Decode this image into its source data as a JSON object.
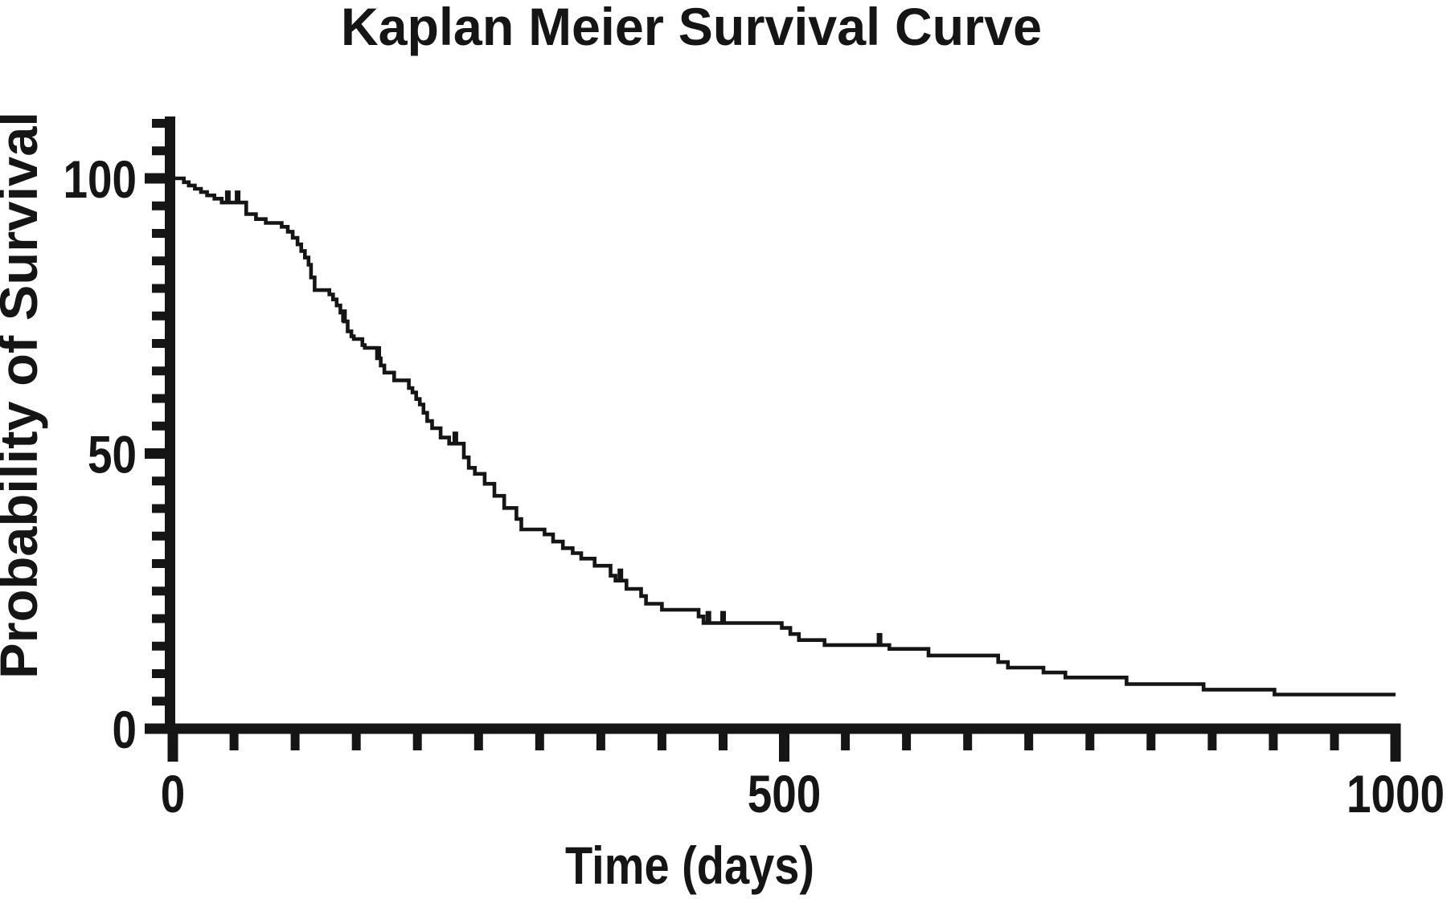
{
  "figure": {
    "background_color": "#ffffff",
    "ink_color": "#151515"
  },
  "chart": {
    "x_axis": {
      "label": "Time (days)",
      "min": 0,
      "max": 1000,
      "minor_tick_interval": 50,
      "tick_labels": [
        {
          "value": 0,
          "label": "0"
        },
        {
          "value": 500,
          "label": "500"
        },
        {
          "value": 1000,
          "label": "1000"
        }
      ]
    },
    "y_axis": {
      "label": "Probability of Survival",
      "min": 0,
      "max": 100,
      "minor_tick_interval": 5,
      "minor_tick_max": 110,
      "tick_labels": [
        {
          "value": 0,
          "label": "0"
        },
        {
          "value": 50,
          "label": "50"
        },
        {
          "value": 100,
          "label": "100"
        }
      ]
    }
  },
  "chart_data": {
    "type": "line",
    "subtype": "kaplan-meier-step",
    "title": "Kaplan Meier Survival Curve",
    "xlabel": "Time (days)",
    "ylabel": "Probability of Survival",
    "xlim": [
      0,
      1000
    ],
    "ylim": [
      0,
      110
    ],
    "grid": false,
    "legend": "none",
    "series": [
      {
        "name": "survival",
        "color": "#151515",
        "step_points": [
          [
            0,
            100
          ],
          [
            9,
            99.3
          ],
          [
            13,
            98.7
          ],
          [
            18,
            98.1
          ],
          [
            23,
            97.5
          ],
          [
            28,
            96.9
          ],
          [
            34,
            96.3
          ],
          [
            40,
            95.6
          ],
          [
            60,
            93.5
          ],
          [
            68,
            92.6
          ],
          [
            76,
            91.9
          ],
          [
            89,
            91.2
          ],
          [
            94,
            90.3
          ],
          [
            98,
            89.2
          ],
          [
            102,
            88.0
          ],
          [
            105,
            86.8
          ],
          [
            108,
            85.6
          ],
          [
            111,
            84.3
          ],
          [
            113,
            82.0
          ],
          [
            116,
            79.7
          ],
          [
            128,
            78.9
          ],
          [
            131,
            78.0
          ],
          [
            134,
            76.9
          ],
          [
            137,
            75.6
          ],
          [
            140,
            74.0
          ],
          [
            143,
            72.2
          ],
          [
            146,
            71.3
          ],
          [
            148,
            70.8
          ],
          [
            155,
            69.7
          ],
          [
            157,
            69.2
          ],
          [
            167,
            67.3
          ],
          [
            170,
            66.0
          ],
          [
            173,
            64.7
          ],
          [
            181,
            63.3
          ],
          [
            193,
            61.9
          ],
          [
            196,
            61.1
          ],
          [
            199,
            59.9
          ],
          [
            202,
            58.9
          ],
          [
            205,
            57.4
          ],
          [
            208,
            55.9
          ],
          [
            212,
            54.6
          ],
          [
            219,
            52.9
          ],
          [
            226,
            51.8
          ],
          [
            238,
            49.3
          ],
          [
            242,
            47.4
          ],
          [
            247,
            46.3
          ],
          [
            255,
            44.5
          ],
          [
            263,
            42.3
          ],
          [
            271,
            40.1
          ],
          [
            281,
            38.1
          ],
          [
            285,
            36.2
          ],
          [
            304,
            35.3
          ],
          [
            311,
            34.0
          ],
          [
            319,
            32.8
          ],
          [
            327,
            31.9
          ],
          [
            334,
            30.9
          ],
          [
            345,
            29.6
          ],
          [
            358,
            27.8
          ],
          [
            362,
            26.9
          ],
          [
            371,
            25.4
          ],
          [
            383,
            24.1
          ],
          [
            387,
            22.7
          ],
          [
            400,
            21.6
          ],
          [
            430,
            20.4
          ],
          [
            434,
            19.2
          ],
          [
            498,
            18.3
          ],
          [
            505,
            17.2
          ],
          [
            512,
            16.1
          ],
          [
            533,
            15.2
          ],
          [
            586,
            14.5
          ],
          [
            618,
            13.3
          ],
          [
            675,
            12.1
          ],
          [
            683,
            11.1
          ],
          [
            712,
            10.2
          ],
          [
            730,
            9.3
          ],
          [
            780,
            8.1
          ],
          [
            843,
            7.1
          ],
          [
            901,
            6.2
          ],
          [
            1000,
            6.2
          ]
        ],
        "censored_times": [
          45,
          53,
          140,
          168,
          231,
          366,
          438,
          450,
          578
        ]
      }
    ]
  }
}
